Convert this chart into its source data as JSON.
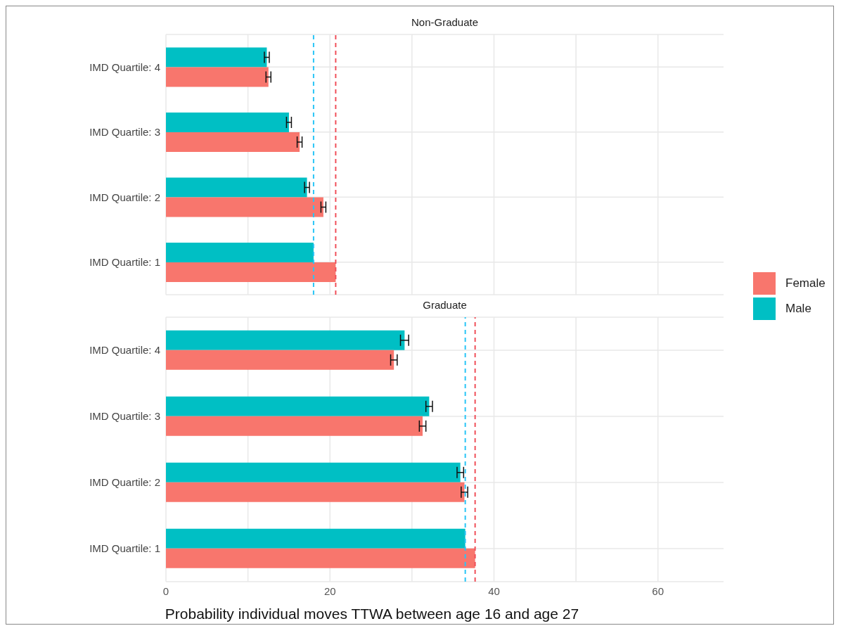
{
  "chart_data": [
    {
      "type": "bar",
      "orientation": "horizontal",
      "title": "Non-Graduate",
      "categories": [
        "IMD Quartile: 4",
        "IMD Quartile: 3",
        "IMD Quartile: 2",
        "IMD Quartile: 1"
      ],
      "series": [
        {
          "color": "#f8766d",
          "values": [
            12.5,
            16.3,
            19.2,
            20.7
          ],
          "errors": [
            0.3,
            0.3,
            0.3,
            null
          ]
        },
        {
          "color": "#00bfc4",
          "values": [
            12.3,
            15.0,
            17.2,
            18.0
          ],
          "errors": [
            0.3,
            0.3,
            0.3,
            null
          ]
        }
      ],
      "xlim": [
        0,
        68
      ],
      "xticks": [
        0,
        {
          "value": 10,
          "label": null
        },
        20,
        {
          "value": 30,
          "label": null
        },
        40,
        {
          "value": 50,
          "label": null
        },
        60
      ],
      "ref_lines": [
        {
          "axis": "x",
          "value": 18.0,
          "color": "#29c5f6",
          "line_style": "dashed"
        },
        {
          "axis": "x",
          "value": 20.7,
          "color": "#f0505a",
          "line_style": "dashed"
        }
      ],
      "grid": true,
      "legend": false,
      "tick_labels": "y"
    },
    {
      "type": "bar",
      "orientation": "horizontal",
      "title": "Graduate",
      "xlabel": "Probability individual moves TTWA between age 16 and age 27",
      "categories": [
        "IMD Quartile: 4",
        "IMD Quartile: 3",
        "IMD Quartile: 2",
        "IMD Quartile: 1"
      ],
      "series": [
        {
          "name": "Female",
          "color": "#f8766d",
          "values": [
            27.8,
            31.3,
            36.4,
            37.7
          ],
          "errors": [
            0.4,
            0.4,
            0.4,
            null
          ]
        },
        {
          "name": "Male",
          "color": "#00bfc4",
          "values": [
            29.1,
            32.1,
            35.9,
            36.5
          ],
          "errors": [
            0.5,
            0.4,
            0.4,
            null
          ]
        }
      ],
      "xlim": [
        0,
        68
      ],
      "xticks": [
        0,
        {
          "value": 10,
          "label": null
        },
        20,
        {
          "value": 30,
          "label": null
        },
        40,
        {
          "value": 50,
          "label": null
        },
        60
      ],
      "ref_lines": [
        {
          "axis": "x",
          "value": 36.5,
          "color": "#29c5f6",
          "line_style": "dashed"
        },
        {
          "axis": "x",
          "value": 37.7,
          "color": "#f0505a",
          "line_style": "dashed"
        }
      ],
      "grid": true,
      "legend": "right"
    }
  ]
}
